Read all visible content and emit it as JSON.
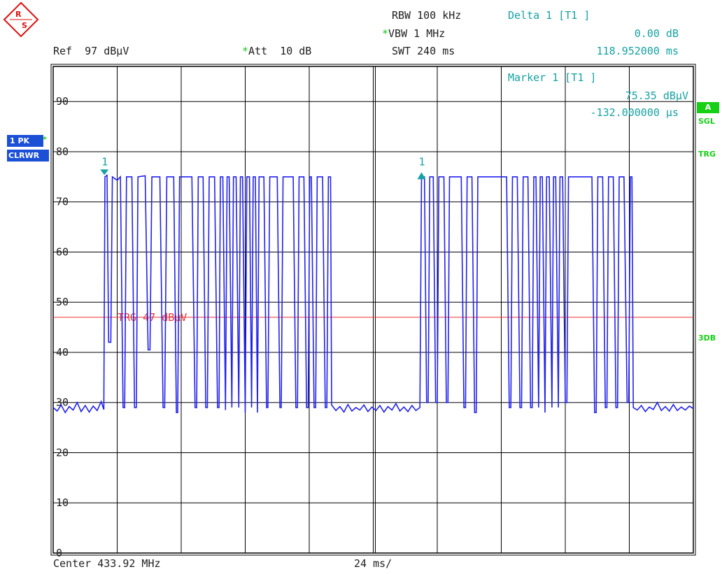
{
  "header": {
    "rbw_label": "RBW",
    "rbw_value": "100 kHz",
    "vbw_star": "*",
    "vbw_label": "VBW",
    "vbw_value": "1 MHz",
    "swt_label": "SWT",
    "swt_value": "240 ms",
    "ref_label": "Ref",
    "ref_value": "97 dBµV",
    "att_star": "*",
    "att_label": "Att",
    "att_value": "10 dB",
    "delta_title": "Delta 1 [T1 ]",
    "delta_level": "0.00 dB",
    "delta_time": "118.952000 ms"
  },
  "marker_box": {
    "title": "Marker 1 [T1 ]",
    "level": "75.35 dBµV",
    "time": "-132.000000 µs"
  },
  "left_panel": {
    "trace": "1 PK",
    "trace_star": "*",
    "mode": "CLRWR"
  },
  "right_panel": {
    "a": "A",
    "sgl": "SGL",
    "trg": "TRG",
    "db3": "3DB"
  },
  "footer": {
    "center": "Center 433.92 MHz",
    "span_div": "24 ms/"
  },
  "colors": {
    "trace": "#2222ee",
    "trigger": "#ee3333",
    "marker": "#17a2a2",
    "grid": "#000000",
    "badge_green": "#16d016",
    "badge_blue": "#1a4fd6"
  },
  "chart_data": {
    "type": "line",
    "title": "",
    "xlabel": "",
    "ylabel": "",
    "x_unit": "ms",
    "ylim": [
      0,
      97
    ],
    "xlim": [
      0,
      240
    ],
    "y_ticks": [
      0,
      10,
      20,
      30,
      40,
      50,
      60,
      70,
      80,
      90
    ],
    "y_tick_labels": [
      "0",
      "10",
      "20",
      "30",
      "40",
      "50",
      "60",
      "70",
      "80",
      "90"
    ],
    "trigger_level": 47,
    "trigger_label": "TRG 47 dBµV",
    "markers": [
      {
        "label": "1",
        "x": 19.2,
        "y": 75.35,
        "symbol": "down"
      },
      {
        "label": "1",
        "x": 138.1,
        "y": 75.35,
        "symbol": "up"
      }
    ],
    "series": [
      {
        "points": [
          [
            0,
            29
          ],
          [
            1.5,
            28.3
          ],
          [
            3,
            29.5
          ],
          [
            4.5,
            28
          ],
          [
            6,
            29.2
          ],
          [
            7.5,
            28.5
          ],
          [
            9,
            30
          ],
          [
            10.5,
            28.2
          ],
          [
            12,
            29.4
          ],
          [
            13.5,
            28.1
          ],
          [
            15,
            29.3
          ],
          [
            16.5,
            28.4
          ],
          [
            18,
            30.2
          ],
          [
            19,
            28.6
          ],
          [
            19.4,
            75
          ],
          [
            20.2,
            75.3
          ],
          [
            20.8,
            42
          ],
          [
            21.6,
            42
          ],
          [
            22.2,
            75
          ],
          [
            24,
            74.3
          ],
          [
            25.2,
            75
          ],
          [
            26.2,
            29
          ],
          [
            26.8,
            29
          ],
          [
            27.5,
            75
          ],
          [
            29.5,
            75
          ],
          [
            30.5,
            29
          ],
          [
            31.2,
            29
          ],
          [
            31.8,
            75
          ],
          [
            34.5,
            75.2
          ],
          [
            35.6,
            40.5
          ],
          [
            36.3,
            40.5
          ],
          [
            37,
            75
          ],
          [
            40,
            75
          ],
          [
            41.2,
            29
          ],
          [
            41.8,
            29
          ],
          [
            42.6,
            75
          ],
          [
            45.2,
            75
          ],
          [
            46.2,
            28
          ],
          [
            46.7,
            28
          ],
          [
            47.4,
            75
          ],
          [
            52,
            75
          ],
          [
            53.2,
            29
          ],
          [
            53.8,
            29
          ],
          [
            54.4,
            75
          ],
          [
            56.2,
            75
          ],
          [
            57.2,
            29
          ],
          [
            57.8,
            29
          ],
          [
            58.5,
            75
          ],
          [
            60.5,
            75
          ],
          [
            61.6,
            29
          ],
          [
            62.2,
            29
          ],
          [
            62.7,
            75
          ],
          [
            63.6,
            75
          ],
          [
            64.6,
            28.5
          ],
          [
            65.2,
            75
          ],
          [
            66,
            75
          ],
          [
            67,
            29
          ],
          [
            67.6,
            75
          ],
          [
            68.6,
            75
          ],
          [
            69.6,
            29
          ],
          [
            70.2,
            75
          ],
          [
            71,
            75
          ],
          [
            72,
            28
          ],
          [
            72.6,
            75
          ],
          [
            73.6,
            75
          ],
          [
            74.4,
            29
          ],
          [
            75,
            75
          ],
          [
            75.8,
            75
          ],
          [
            76.6,
            28
          ],
          [
            77.2,
            75
          ],
          [
            79,
            75
          ],
          [
            80,
            29
          ],
          [
            80.5,
            29
          ],
          [
            81.2,
            75
          ],
          [
            84,
            75
          ],
          [
            85,
            29
          ],
          [
            85.5,
            29
          ],
          [
            86.2,
            75
          ],
          [
            90,
            75
          ],
          [
            91,
            29
          ],
          [
            91.6,
            29
          ],
          [
            92.2,
            75
          ],
          [
            94,
            75
          ],
          [
            95,
            29
          ],
          [
            95.6,
            29
          ],
          [
            96.2,
            75
          ],
          [
            96.8,
            75
          ],
          [
            97.8,
            29
          ],
          [
            98.4,
            29
          ],
          [
            99,
            75
          ],
          [
            101,
            75
          ],
          [
            102,
            29
          ],
          [
            102.6,
            29
          ],
          [
            103.2,
            75
          ],
          [
            104,
            75
          ],
          [
            104.4,
            29.5
          ],
          [
            106,
            28.4
          ],
          [
            107.5,
            29.2
          ],
          [
            109,
            28.1
          ],
          [
            110.5,
            29.6
          ],
          [
            112,
            28.3
          ],
          [
            113.5,
            29
          ],
          [
            115,
            28.5
          ],
          [
            116.5,
            29.5
          ],
          [
            118,
            28.2
          ],
          [
            119.5,
            29.1
          ],
          [
            121,
            28.4
          ],
          [
            122.5,
            29.4
          ],
          [
            124,
            28.1
          ],
          [
            125.5,
            29.2
          ],
          [
            127,
            28.5
          ],
          [
            128.5,
            29.8
          ],
          [
            130,
            28.3
          ],
          [
            131.5,
            29.1
          ],
          [
            133,
            28.2
          ],
          [
            134.5,
            29.4
          ],
          [
            136,
            28.4
          ],
          [
            137.5,
            29
          ],
          [
            138.1,
            75
          ],
          [
            139.2,
            75
          ],
          [
            140,
            30
          ],
          [
            140.6,
            30
          ],
          [
            141.2,
            75
          ],
          [
            142.5,
            75
          ],
          [
            143.4,
            30
          ],
          [
            144,
            30
          ],
          [
            144.6,
            75
          ],
          [
            146.5,
            75
          ],
          [
            147.4,
            30
          ],
          [
            148,
            30
          ],
          [
            148.6,
            75
          ],
          [
            153,
            75
          ],
          [
            154,
            29
          ],
          [
            154.6,
            29
          ],
          [
            155.2,
            75
          ],
          [
            157,
            75
          ],
          [
            158,
            28
          ],
          [
            158.6,
            28
          ],
          [
            159.2,
            75
          ],
          [
            170,
            75
          ],
          [
            171,
            29
          ],
          [
            171.6,
            29
          ],
          [
            172.2,
            75
          ],
          [
            174,
            75
          ],
          [
            175,
            29
          ],
          [
            175.6,
            29
          ],
          [
            176.2,
            75
          ],
          [
            178,
            75
          ],
          [
            179,
            29
          ],
          [
            179.6,
            29
          ],
          [
            180.2,
            75
          ],
          [
            181,
            75
          ],
          [
            182,
            29
          ],
          [
            182.6,
            75
          ],
          [
            183.4,
            75
          ],
          [
            184.4,
            28
          ],
          [
            185,
            75
          ],
          [
            186,
            75
          ],
          [
            187,
            29
          ],
          [
            187.6,
            75
          ],
          [
            188.4,
            75
          ],
          [
            189.4,
            29
          ],
          [
            190,
            75
          ],
          [
            191,
            75
          ],
          [
            192,
            30
          ],
          [
            192.6,
            30
          ],
          [
            193.2,
            75
          ],
          [
            202,
            75
          ],
          [
            203,
            28
          ],
          [
            203.6,
            28
          ],
          [
            204.2,
            75
          ],
          [
            206,
            75
          ],
          [
            207,
            29
          ],
          [
            207.6,
            29
          ],
          [
            208.2,
            75
          ],
          [
            210,
            75
          ],
          [
            211,
            29
          ],
          [
            211.6,
            29
          ],
          [
            212.2,
            75
          ],
          [
            214,
            75
          ],
          [
            215.2,
            30
          ],
          [
            215.8,
            30
          ],
          [
            216.4,
            75
          ],
          [
            217,
            75
          ],
          [
            217.5,
            29
          ],
          [
            219,
            28.5
          ],
          [
            220.5,
            29.4
          ],
          [
            222,
            28.2
          ],
          [
            223.5,
            29.1
          ],
          [
            225,
            28.6
          ],
          [
            226.5,
            30
          ],
          [
            228,
            28.4
          ],
          [
            229.5,
            29.2
          ],
          [
            231,
            28.3
          ],
          [
            232.5,
            29.6
          ],
          [
            234,
            28.4
          ],
          [
            235.5,
            29.1
          ],
          [
            237,
            28.5
          ],
          [
            238.5,
            29.3
          ],
          [
            240,
            28.8
          ]
        ]
      }
    ]
  }
}
